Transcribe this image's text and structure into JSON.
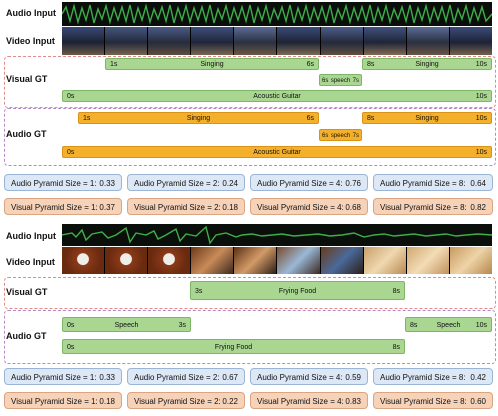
{
  "example1": {
    "audio_input_label": "Audio Input",
    "video_input_label": "Video Input",
    "visual_gt": {
      "label": "Visual GT",
      "bars": [
        {
          "start": "1s",
          "name": "Singing",
          "end": "6s"
        },
        {
          "start": "8s",
          "name": "Singing",
          "end": "10s"
        },
        {
          "start": "6s",
          "name": "speech",
          "end": "7s"
        },
        {
          "start": "0s",
          "name": "Acoustic Guitar",
          "end": "10s"
        }
      ]
    },
    "audio_gt": {
      "label": "Audio GT",
      "bars": [
        {
          "start": "1s",
          "name": "Singing",
          "end": "6s"
        },
        {
          "start": "8s",
          "name": "Singing",
          "end": "10s"
        },
        {
          "start": "6s",
          "name": "speech",
          "end": "7s"
        },
        {
          "start": "0s",
          "name": "Acoustic Guitar",
          "end": "10s"
        }
      ]
    },
    "audio_scores": [
      {
        "label": "Audio Pyramid Size = 1:",
        "value": "0.33"
      },
      {
        "label": "Audio Pyramid Size = 2:",
        "value": "0.24"
      },
      {
        "label": "Audio Pyramid Size = 4:",
        "value": "0.76"
      },
      {
        "label": "Audio Pyramid Size = 8:",
        "value": "0.64"
      }
    ],
    "visual_scores": [
      {
        "label": "Visual Pyramid Size = 1:",
        "value": "0.37"
      },
      {
        "label": "Visual Pyramid Size = 2:",
        "value": "0.18"
      },
      {
        "label": "Visual Pyramid Size = 4:",
        "value": "0.68"
      },
      {
        "label": "Visual Pyramid Size = 8:",
        "value": "0.82"
      }
    ]
  },
  "example2": {
    "audio_input_label": "Audio Input",
    "video_input_label": "Video Input",
    "visual_gt": {
      "label": "Visual GT",
      "bars": [
        {
          "start": "3s",
          "name": "Frying Food",
          "end": "8s"
        }
      ]
    },
    "audio_gt": {
      "label": "Audio GT",
      "bars": [
        {
          "start": "0s",
          "name": "Speech",
          "end": "3s"
        },
        {
          "start": "8s",
          "name": "Speech",
          "end": "10s"
        },
        {
          "start": "0s",
          "name": "Frying Food",
          "end": "8s"
        }
      ]
    },
    "audio_scores": [
      {
        "label": "Audio Pyramid Size = 1:",
        "value": "0.33"
      },
      {
        "label": "Audio Pyramid Size = 2:",
        "value": "0.67"
      },
      {
        "label": "Audio Pyramid Size = 4:",
        "value": "0.59"
      },
      {
        "label": "Audio Pyramid Size = 8:",
        "value": "0.42"
      }
    ],
    "visual_scores": [
      {
        "label": "Visual Pyramid Size = 1:",
        "value": "0.18"
      },
      {
        "label": "Visual Pyramid Size = 2:",
        "value": "0.22"
      },
      {
        "label": "Visual Pyramid Size = 4:",
        "value": "0.83"
      },
      {
        "label": "Visual Pyramid Size = 8:",
        "value": "0.60"
      }
    ]
  },
  "colors": {
    "visual_bar": "#a9d690",
    "audio_bar": "#f4b02a",
    "audio_score_bg": "#dce8f5",
    "visual_score_bg": "#f6d2b9",
    "waveform": "#3fae4a",
    "gt_border": "#e58a8a"
  }
}
